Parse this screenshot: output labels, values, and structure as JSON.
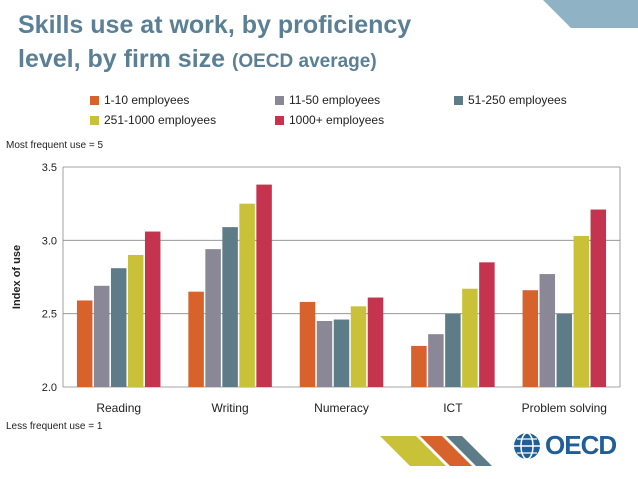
{
  "header": {
    "title_main": "Skills use at work, by proficiency level, by firm size",
    "title_sub": "(OECD average)"
  },
  "notes": {
    "top": "Most frequent use = 5",
    "bottom": "Less frequent use = 1"
  },
  "logo": {
    "text": "OECD",
    "icon": "globe-icon"
  },
  "colors": {
    "series": [
      "#d8622c",
      "#8a8796",
      "#5d7c88",
      "#c9c238",
      "#c5344f"
    ],
    "title": "#5b7f95",
    "grid": "#888888",
    "deco": [
      "#c9c238",
      "#d8622c",
      "#5d7c88"
    ]
  },
  "chart_data": {
    "type": "bar",
    "title": "Skills use at work, by proficiency level, by firm size (OECD average)",
    "xlabel": "",
    "ylabel": "Index of use",
    "ylim": [
      2.0,
      3.5
    ],
    "yticks": [
      "2.0",
      "2.5",
      "3.0",
      "3.5"
    ],
    "grid": true,
    "legend_position": "top",
    "categories": [
      "Reading",
      "Writing",
      "Numeracy",
      "ICT",
      "Problem solving"
    ],
    "series": [
      {
        "name": "1-10 employees",
        "values": [
          2.59,
          2.65,
          2.58,
          2.28,
          2.66
        ]
      },
      {
        "name": "11-50 employees",
        "values": [
          2.69,
          2.94,
          2.45,
          2.36,
          2.77
        ]
      },
      {
        "name": "51-250 employees",
        "values": [
          2.81,
          3.09,
          2.46,
          2.5,
          2.5
        ]
      },
      {
        "name": "251-1000 employees",
        "values": [
          2.9,
          3.25,
          2.55,
          2.67,
          3.03
        ]
      },
      {
        "name": "1000+ employees",
        "values": [
          3.06,
          3.38,
          2.61,
          2.85,
          3.21
        ]
      }
    ]
  }
}
